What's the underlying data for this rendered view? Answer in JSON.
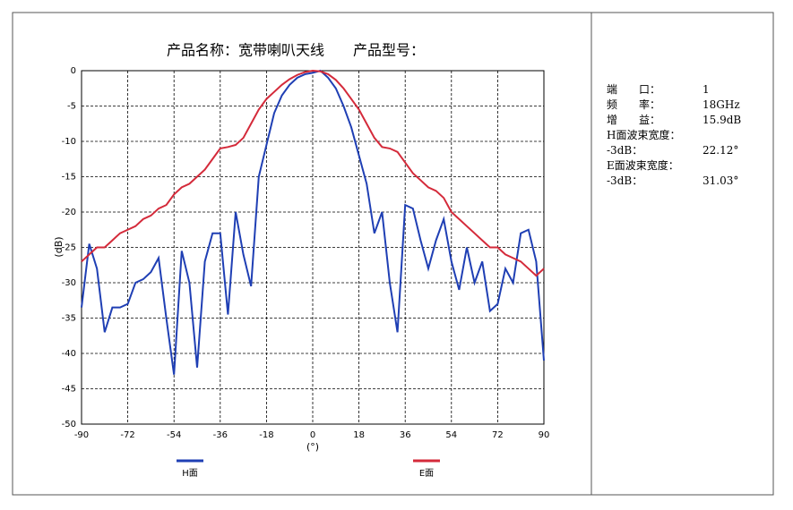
{
  "chart_data": {
    "type": "line",
    "title": "产品名称：宽带喇叭天线　　产品型号：",
    "x_label": "(°)",
    "y_label": "(dB)",
    "x": [
      -90,
      -87,
      -84,
      -81,
      -78,
      -75,
      -72,
      -69,
      -66,
      -63,
      -60,
      -57,
      -54,
      -51,
      -48,
      -45,
      -42,
      -39,
      -36,
      -33,
      -30,
      -27,
      -24,
      -21,
      -18,
      -15,
      -12,
      -9,
      -6,
      -3,
      0,
      3,
      6,
      9,
      12,
      15,
      18,
      21,
      24,
      27,
      30,
      33,
      36,
      39,
      42,
      45,
      48,
      51,
      54,
      57,
      60,
      63,
      66,
      69,
      72,
      75,
      78,
      81,
      84,
      87,
      90
    ],
    "series": [
      {
        "name": "H面",
        "color": "#1f3fb4",
        "values": [
          -33.5,
          -24.5,
          -28,
          -37,
          -33.5,
          -33.5,
          -33,
          -30,
          -29.5,
          -28.5,
          -26.5,
          -35,
          -43,
          -25.5,
          -30,
          -42,
          -27,
          -23,
          -23,
          -34.5,
          -20,
          -26,
          -30.5,
          -15,
          -10.5,
          -6,
          -3.5,
          -2,
          -1,
          -0.5,
          -0.3,
          0,
          -1,
          -2.5,
          -5,
          -8,
          -12,
          -16,
          -23,
          -20,
          -30,
          -37,
          -19,
          -19.5,
          -24,
          -28,
          -24,
          -21,
          -27,
          -31,
          -25,
          -30,
          -27,
          -34,
          -33,
          -28,
          -30,
          -23,
          -22.5,
          -27,
          -41
        ]
      },
      {
        "name": "E面",
        "color": "#d42a3a",
        "values": [
          -27,
          -26,
          -25,
          -25,
          -24,
          -23,
          -22.5,
          -22,
          -21,
          -20.5,
          -19.5,
          -19,
          -17.5,
          -16.5,
          -16,
          -15,
          -14,
          -12.5,
          -11,
          -10.8,
          -10.5,
          -9.5,
          -7.5,
          -5.5,
          -4,
          -3,
          -2,
          -1.2,
          -0.6,
          -0.2,
          0,
          -0.1,
          -0.5,
          -1.3,
          -2.5,
          -4,
          -5.5,
          -7.5,
          -9.5,
          -10.8,
          -11,
          -11.5,
          -13,
          -14.5,
          -15.5,
          -16.5,
          -17,
          -18,
          -20,
          -21,
          -22,
          -23,
          -24,
          -25,
          -25,
          -26,
          -26.5,
          -27,
          -28,
          -29,
          -28
        ]
      }
    ],
    "xlim": [
      -90,
      90
    ],
    "xticks": [
      -90,
      -72,
      -54,
      -36,
      -18,
      0,
      18,
      36,
      54,
      72,
      90
    ],
    "ylim": [
      -50,
      0
    ],
    "yticks": [
      0,
      -5,
      -10,
      -15,
      -20,
      -25,
      -30,
      -35,
      -40,
      -45,
      -50
    ],
    "grid": true
  },
  "side_panel": {
    "rows": [
      {
        "label": "端　　口：",
        "value": "1"
      },
      {
        "label": "频　　率：",
        "value": "18GHz"
      },
      {
        "label": "增　　益：",
        "value": "15.9dB"
      },
      {
        "label": "H面波束宽度："
      },
      {
        "label": "-3dB：",
        "value": "22.12°"
      },
      {
        "label": "E面波束宽度："
      },
      {
        "label": "-3dB：",
        "value": "31.03°"
      }
    ]
  }
}
